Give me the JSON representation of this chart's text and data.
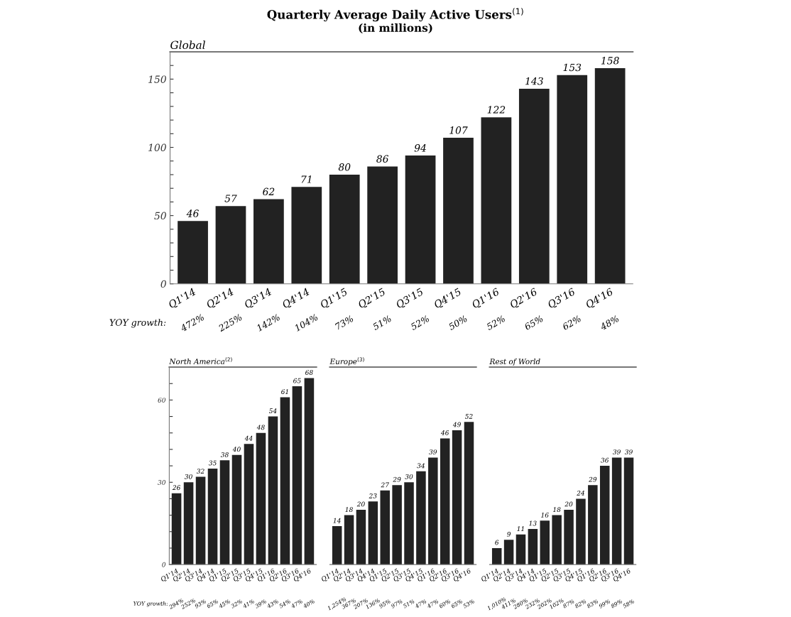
{
  "chart_data": [
    {
      "type": "other",
      "title": "Quarterly Average Daily Active Users$^{(1)}$",
      "subtitle": "(in millions)"
    },
    {
      "type": "bar",
      "title": "Global",
      "categories": [
        "Q1'14",
        "Q2'14",
        "Q3'14",
        "Q4'14",
        "Q1'15",
        "Q2'15",
        "Q3'15",
        "Q4'15",
        "Q1'16",
        "Q2'16",
        "Q3'16",
        "Q4'16"
      ],
      "values": [
        46,
        57,
        62,
        71,
        80,
        86,
        94,
        107,
        122,
        143,
        153,
        158
      ],
      "color": "#222222",
      "data_labels": true,
      "ylim": [
        0,
        170
      ],
      "yticks": [
        0,
        {
          "value": 10,
          "label": null
        },
        {
          "value": 20,
          "label": null
        },
        {
          "value": 30,
          "label": null
        },
        {
          "value": 40,
          "label": null
        },
        50,
        {
          "value": 60,
          "label": null
        },
        {
          "value": 70,
          "label": null
        },
        {
          "value": 80,
          "label": null
        },
        {
          "value": 90,
          "label": null
        },
        100,
        {
          "value": 110,
          "label": null
        },
        {
          "value": 120,
          "label": null
        },
        {
          "value": 130,
          "label": null
        },
        {
          "value": 140,
          "label": null
        },
        150,
        {
          "value": 160,
          "label": null
        }
      ],
      "annotations": [
        "YOY growth:",
        "472%",
        "225%",
        "142%",
        "104%",
        "73%",
        "51%",
        "52%",
        "50%",
        "52%",
        "65%",
        "62%",
        "48%"
      ]
    },
    {
      "type": "bar",
      "title": "North America$^{(2)}$",
      "categories": [
        "Q1'14",
        "Q2'14",
        "Q3'14",
        "Q4'14",
        "Q1'15",
        "Q2'15",
        "Q3'15",
        "Q4'15",
        "Q1'16",
        "Q2'16",
        "Q3'16",
        "Q4'16"
      ],
      "values": [
        26,
        30,
        32,
        35,
        38,
        40,
        44,
        48,
        54,
        61,
        65,
        68
      ],
      "color": "#222222",
      "data_labels": true,
      "ylim": [
        0,
        72
      ],
      "yticks": [
        0,
        {
          "value": 6,
          "label": null
        },
        {
          "value": 12,
          "label": null
        },
        {
          "value": 18,
          "label": null
        },
        {
          "value": 24,
          "label": null
        },
        30,
        {
          "value": 36,
          "label": null
        },
        {
          "value": 42,
          "label": null
        },
        {
          "value": 48,
          "label": null
        },
        {
          "value": 54,
          "label": null
        },
        60,
        {
          "value": 66,
          "label": null
        }
      ],
      "annotations": [
        "YOY growth:",
        "294%",
        "252%",
        "93%",
        "65%",
        "45%",
        "32%",
        "41%",
        "39%",
        "43%",
        "54%",
        "47%",
        "40%"
      ]
    },
    {
      "type": "bar",
      "title": "Europe$^{(3)}$",
      "categories": [
        "Q1'14",
        "Q2'14",
        "Q3'14",
        "Q4'14",
        "Q1'15",
        "Q2'15",
        "Q3'15",
        "Q4'15",
        "Q1'16",
        "Q2'16",
        "Q3'16",
        "Q4'16"
      ],
      "values": [
        14,
        18,
        20,
        23,
        27,
        29,
        30,
        34,
        39,
        46,
        49,
        52
      ],
      "color": "#222222",
      "data_labels": true,
      "ylim": [
        0,
        72
      ],
      "tick_labels": "x",
      "annotations": [
        "1,254%",
        "367%",
        "207%",
        "136%",
        "95%",
        "97%",
        "51%",
        "47%",
        "47%",
        "60%",
        "65%",
        "53%"
      ]
    },
    {
      "type": "bar",
      "title": "Rest of World",
      "categories": [
        "Q1'14",
        "Q2'14",
        "Q3'14",
        "Q4'14",
        "Q1'15",
        "Q2'15",
        "Q3'15",
        "Q4'15",
        "Q1'16",
        "Q2'16",
        "Q3'16",
        "Q4'16"
      ],
      "values": [
        6,
        9,
        11,
        13,
        16,
        18,
        20,
        24,
        29,
        36,
        39,
        39
      ],
      "color": "#222222",
      "data_labels": true,
      "ylim": [
        0,
        72
      ],
      "tick_labels": "x",
      "annotations": [
        "1,010%",
        "411%",
        "280%",
        "232%",
        "202%",
        "102%",
        "87%",
        "82%",
        "83%",
        "99%",
        "89%",
        "58%"
      ]
    }
  ]
}
